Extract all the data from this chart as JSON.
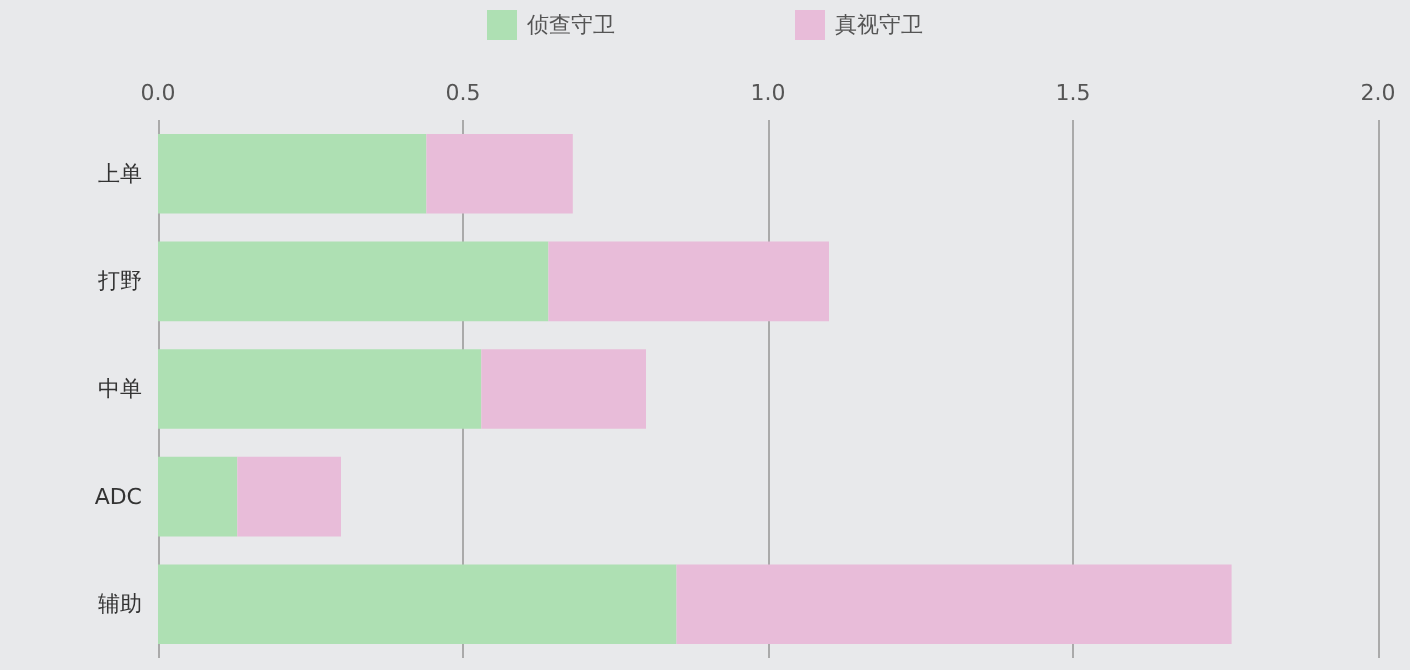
{
  "chart_data": {
    "type": "bar",
    "orientation": "horizontal",
    "stacked": true,
    "categories": [
      "上单",
      "打野",
      "中单",
      "ADC",
      "辅助"
    ],
    "series": [
      {
        "name": "侦查守卫",
        "color": "#aee0b3",
        "values": [
          0.44,
          0.64,
          0.53,
          0.13,
          0.85
        ]
      },
      {
        "name": "真视守卫",
        "color": "#e8bcd9",
        "values": [
          0.24,
          0.46,
          0.27,
          0.17,
          0.91
        ]
      }
    ],
    "xlim": [
      0,
      2
    ],
    "xticks": [
      {
        "value": 0,
        "label": "0.0"
      },
      {
        "value": 0.5,
        "label": "0.5"
      },
      {
        "value": 1,
        "label": "1.0"
      },
      {
        "value": 1.5,
        "label": "1.5"
      },
      {
        "value": 2,
        "label": "2.0"
      }
    ],
    "grid": "x",
    "legend": "top"
  }
}
